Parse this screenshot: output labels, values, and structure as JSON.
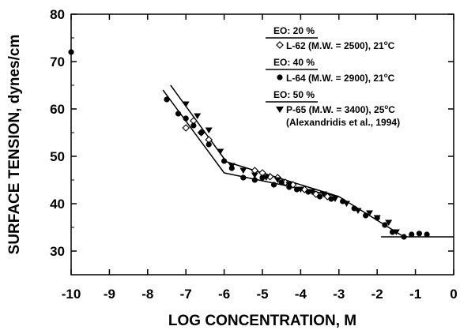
{
  "chart_data": {
    "type": "scatter",
    "title": "",
    "xlabel": "LOG CONCENTRATION, M",
    "ylabel": "SURFACE TENSION, dynes/cm",
    "xlim": [
      -10,
      0
    ],
    "ylim": [
      25,
      80
    ],
    "xticks": [
      "-10",
      "-9",
      "-8",
      "-7",
      "-6",
      "-5",
      "-4",
      "-3",
      "-2",
      "-1",
      "0"
    ],
    "yticks": [
      "30",
      "40",
      "50",
      "60",
      "70",
      "80"
    ],
    "grid": false,
    "legend_position": "top-right",
    "legend_groups": [
      {
        "heading": "EO: 20 %",
        "label": "L-62 (M.W. = 2500), 21",
        "superscript": "o",
        "unit": "C"
      },
      {
        "heading": "EO: 40 %",
        "label": "L-64 (M.W. = 2900), 21",
        "superscript": "o",
        "unit": "C"
      },
      {
        "heading": "EO: 50 %",
        "label": "P-65 (M.W. = 3400), 25",
        "superscript": "o",
        "unit": "C",
        "note": "(Alexandridis et al., 1994)"
      }
    ],
    "series": [
      {
        "name": "L-62 (M.W. = 2500), 21oC",
        "marker": "open-diamond",
        "points": [
          [
            -7.0,
            56
          ],
          [
            -6.8,
            57.5
          ],
          [
            -6.6,
            55
          ],
          [
            -6.4,
            53.5
          ],
          [
            -5.2,
            47
          ],
          [
            -5.0,
            46.5
          ],
          [
            -4.8,
            45.7
          ],
          [
            -4.6,
            45.5
          ],
          [
            -4.4,
            44.5
          ],
          [
            -4.2,
            44
          ],
          [
            -3.9,
            43
          ],
          [
            -3.6,
            42
          ],
          [
            -3.3,
            41.5
          ]
        ]
      },
      {
        "name": "L-64 (M.W. = 2900), 21oC",
        "marker": "filled-circle",
        "points": [
          [
            -10.0,
            72
          ],
          [
            -7.5,
            62
          ],
          [
            -7.2,
            59
          ],
          [
            -7.0,
            58
          ],
          [
            -6.8,
            56.5
          ],
          [
            -6.6,
            55
          ],
          [
            -6.4,
            52.5
          ],
          [
            -6.0,
            49
          ],
          [
            -5.8,
            47.5
          ],
          [
            -5.5,
            45.5
          ],
          [
            -5.2,
            45
          ],
          [
            -5.0,
            45.5
          ],
          [
            -4.7,
            44
          ],
          [
            -4.5,
            44.5
          ],
          [
            -4.3,
            43.5
          ],
          [
            -4.1,
            43
          ],
          [
            -3.8,
            42.5
          ],
          [
            -3.5,
            41.5
          ],
          [
            -3.2,
            41
          ],
          [
            -2.9,
            40.5
          ],
          [
            -2.6,
            39
          ],
          [
            -2.3,
            37.5
          ],
          [
            -2.0,
            37
          ],
          [
            -1.8,
            35.5
          ],
          [
            -1.6,
            34
          ],
          [
            -1.3,
            33
          ],
          [
            -1.1,
            33.5
          ],
          [
            -0.9,
            33.7
          ],
          [
            -0.7,
            33.5
          ]
        ]
      },
      {
        "name": "P-65 (M.W. = 3400), 25oC",
        "marker": "filled-triangle-down",
        "points": [
          [
            -7.0,
            61
          ],
          [
            -6.7,
            58.5
          ],
          [
            -6.4,
            55.5
          ],
          [
            -6.1,
            51
          ],
          [
            -5.8,
            48
          ],
          [
            -5.5,
            47
          ],
          [
            -5.2,
            46
          ],
          [
            -4.9,
            45.5
          ],
          [
            -4.6,
            45
          ],
          [
            -4.3,
            44
          ],
          [
            -4.0,
            43
          ],
          [
            -3.7,
            42.5
          ],
          [
            -3.4,
            42
          ],
          [
            -3.1,
            41
          ],
          [
            -2.8,
            40
          ],
          [
            -2.5,
            38.5
          ],
          [
            -2.2,
            38
          ],
          [
            -2.0,
            37
          ],
          [
            -1.7,
            36
          ],
          [
            -1.5,
            34
          ]
        ]
      }
    ],
    "fit_lines": [
      [
        [
          -7.6,
          64
        ],
        [
          -6.0,
          46.5
        ]
      ],
      [
        [
          -7.4,
          65
        ],
        [
          -6.0,
          49.5
        ]
      ],
      [
        [
          -6.0,
          46.5
        ],
        [
          -3.0,
          41.5
        ]
      ],
      [
        [
          -6.0,
          49
        ],
        [
          -3.0,
          41.5
        ]
      ],
      [
        [
          -3.0,
          41.5
        ],
        [
          -1.3,
          33
        ]
      ],
      [
        [
          -1.9,
          33
        ],
        [
          0.0,
          33
        ]
      ]
    ]
  }
}
